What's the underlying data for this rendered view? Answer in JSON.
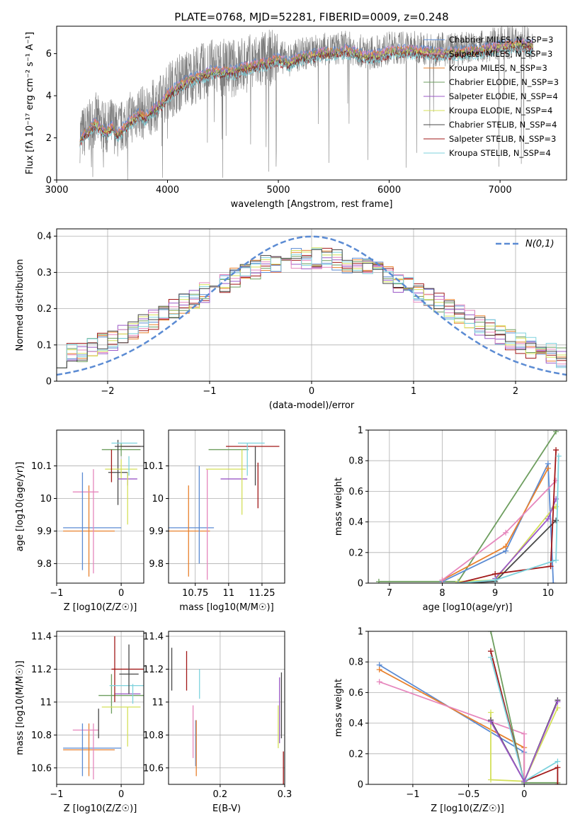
{
  "palette": [
    "#5b8bd3",
    "#e8812e",
    "#6e9e5f",
    "#a11818",
    "#9b59c7",
    "#8a6a5a",
    "#e687bd",
    "#7d7d7d",
    "#d4e05a",
    "#7dd2dd",
    "#474747"
  ],
  "chart_data": [
    {
      "type": "line",
      "id": "spectrum",
      "title": "PLATE=0768, MJD=52281, FIBERID=0009, z=0.248",
      "xlabel": "wavelength [Angstrom, rest frame]",
      "ylabel": "Flux [fλ 10⁻¹⁷ erg cm⁻² s⁻¹ A⁻¹]",
      "xlim": [
        3000,
        7600
      ],
      "ylim": [
        0,
        7.3
      ],
      "xticks": [
        3000,
        4000,
        5000,
        6000,
        7000
      ],
      "yticks": [
        0,
        2,
        4,
        6
      ],
      "grid": false,
      "legend_position": "right",
      "legend": [
        "Chabrier MILES, N_SSP=3",
        "Salpeter MILES, N_SSP=3",
        "Kroupa MILES, N_SSP=3",
        "Chabrier ELODIE, N_SSP=3",
        "Salpeter ELODIE, N_SSP=4",
        "Kroupa ELODIE, N_SSP=4",
        "Chabrier STELIB, N_SSP=4",
        "Salpeter STELIB, N_SSP=3",
        "Kroupa STELIB, N_SSP=4"
      ],
      "legend_colors": [
        "#5b8bd3",
        "#e687bd",
        "#e8812e",
        "#6e9e5f",
        "#9b59c7",
        "#d4e05a",
        "#474747",
        "#a11818",
        "#7dd2dd"
      ],
      "data_color": "#7d7d7d",
      "model_envelope": {
        "x": [
          3210,
          3250,
          3300,
          3350,
          3400,
          3450,
          3500,
          3550,
          3600,
          3650,
          3700,
          3750,
          3800,
          3850,
          3900,
          3950,
          4000,
          4100,
          4200,
          4300,
          4400,
          4500,
          4600,
          4700,
          4800,
          4900,
          5000,
          5100,
          5200,
          5300,
          5400,
          5500,
          5600,
          5700,
          5800,
          5900,
          6000,
          6200,
          6400,
          6600,
          6800,
          7000,
          7200,
          7300
        ],
        "y": [
          2.1,
          2.3,
          2.55,
          2.9,
          2.6,
          2.4,
          2.7,
          2.3,
          2.6,
          2.9,
          3.1,
          3.3,
          3.1,
          3.4,
          3.6,
          3.8,
          4.2,
          4.6,
          4.9,
          5.1,
          5.3,
          5.3,
          5.3,
          5.5,
          5.6,
          5.75,
          5.9,
          5.7,
          6.0,
          6.05,
          6.2,
          6.2,
          6.3,
          6.2,
          6.0,
          6.1,
          6.25,
          6.3,
          6.2,
          6.2,
          6.3,
          6.5,
          6.6,
          6.5
        ]
      }
    },
    {
      "type": "histogram",
      "id": "residuals",
      "xlabel": "(data-model)/error",
      "ylabel": "Normed distribution",
      "xlim": [
        -2.5,
        2.5
      ],
      "ylim": [
        0,
        0.42
      ],
      "xticks": [
        -2,
        -1,
        0,
        1,
        2
      ],
      "yticks": [
        0.0,
        0.1,
        0.2,
        0.3,
        0.4
      ],
      "grid": true,
      "legend": [
        "N(0,1)"
      ],
      "legend_position": "top-right",
      "gaussian_color": "#5b8bd3",
      "bin_width": 0.1,
      "bin_start": -2.5
    },
    {
      "type": "scatter",
      "id": "age_vs_Z",
      "xlabel": "Z [log10(Z/Z☉)]",
      "ylabel": "age  [log10(age/yr)]",
      "xlim": [
        -1.0,
        0.35
      ],
      "ylim": [
        9.74,
        10.21
      ],
      "xticks": [
        -1,
        0
      ],
      "yticks": [
        9.8,
        9.9,
        10.0,
        10.1
      ],
      "grid": true,
      "points": [
        {
          "x": -0.45,
          "y": 9.91,
          "xerr": 0.45,
          "yerr": 0.0,
          "c": 0
        },
        {
          "x": -0.5,
          "y": 9.9,
          "xerr": 0.4,
          "yerr": 0.14,
          "c": 1
        },
        {
          "x": -0.55,
          "y": 10.02,
          "xerr": 0.2,
          "yerr": 0.0,
          "c": 6
        },
        {
          "x": -0.43,
          "y": 9.93,
          "xerr": 0.0,
          "yerr": 0.16,
          "c": 6
        },
        {
          "x": -0.6,
          "y": 9.93,
          "xerr": 0.0,
          "yerr": 0.15,
          "c": 0
        },
        {
          "x": 0.0,
          "y": 10.15,
          "xerr": 0.3,
          "yerr": 0.02,
          "c": 2
        },
        {
          "x": -0.05,
          "y": 10.08,
          "xerr": 0.15,
          "yerr": 0.1,
          "c": 10
        },
        {
          "x": 0.0,
          "y": 10.09,
          "xerr": 0.25,
          "yerr": 0.03,
          "c": 8
        },
        {
          "x": 0.1,
          "y": 10.06,
          "xerr": 0.15,
          "yerr": 0.02,
          "c": 4
        },
        {
          "x": 0.15,
          "y": 10.16,
          "xerr": 0.15,
          "yerr": 0.0,
          "c": 3
        },
        {
          "x": -0.15,
          "y": 10.1,
          "xerr": 0.0,
          "yerr": 0.05,
          "c": 3
        },
        {
          "x": 0.15,
          "y": 10.16,
          "xerr": 0.25,
          "yerr": 0.0,
          "c": 10
        },
        {
          "x": 0.05,
          "y": 10.17,
          "xerr": 0.2,
          "yerr": 0.0,
          "c": 9
        },
        {
          "x": 0.1,
          "y": 10.0,
          "xerr": 0.0,
          "yerr": 0.08,
          "c": 8
        },
        {
          "x": 0.12,
          "y": 10.1,
          "xerr": 0.0,
          "yerr": 0.03,
          "c": 9
        }
      ]
    },
    {
      "type": "scatter",
      "id": "age_vs_mass",
      "xlabel": "mass [log10(M/M☉)]",
      "ylabel": "",
      "xlim": [
        10.55,
        11.42
      ],
      "ylim": [
        9.74,
        10.21
      ],
      "xticks": [
        10.75,
        11.0,
        11.25
      ],
      "yticks": [
        9.8,
        9.9,
        10.0,
        10.1
      ],
      "grid": true,
      "points": [
        {
          "x": 10.72,
          "y": 9.91,
          "xerr": 0.17,
          "yerr": 0.0,
          "c": 0
        },
        {
          "x": 10.7,
          "y": 9.9,
          "xerr": 0.16,
          "yerr": 0.14,
          "c": 1
        },
        {
          "x": 10.84,
          "y": 9.92,
          "xerr": 0.0,
          "yerr": 0.17,
          "c": 6
        },
        {
          "x": 10.78,
          "y": 9.95,
          "xerr": 0.0,
          "yerr": 0.15,
          "c": 0
        },
        {
          "x": 11.0,
          "y": 10.15,
          "xerr": 0.15,
          "yerr": 0.0,
          "c": 2
        },
        {
          "x": 10.98,
          "y": 10.09,
          "xerr": 0.15,
          "yerr": 0.0,
          "c": 8
        },
        {
          "x": 11.04,
          "y": 10.06,
          "xerr": 0.1,
          "yerr": 0.0,
          "c": 4
        },
        {
          "x": 11.18,
          "y": 10.16,
          "xerr": 0.2,
          "yerr": 0.0,
          "c": 3
        },
        {
          "x": 11.2,
          "y": 10.1,
          "xerr": 0.0,
          "yerr": 0.06,
          "c": 10
        },
        {
          "x": 11.22,
          "y": 10.04,
          "xerr": 0.0,
          "yerr": 0.07,
          "c": 3
        },
        {
          "x": 11.17,
          "y": 10.17,
          "xerr": 0.1,
          "yerr": 0.0,
          "c": 9
        },
        {
          "x": 11.1,
          "y": 10.05,
          "xerr": 0.0,
          "yerr": 0.1,
          "c": 8
        },
        {
          "x": 11.14,
          "y": 10.12,
          "xerr": 0.0,
          "yerr": 0.05,
          "c": 9
        }
      ]
    },
    {
      "type": "line",
      "id": "weight_vs_age",
      "xlabel": "age  [log10(age/yr)]",
      "ylabel": "mass weight",
      "xlim": [
        6.6,
        10.35
      ],
      "ylim": [
        0,
        1.0
      ],
      "xticks": [
        7,
        8,
        9,
        10
      ],
      "yticks": [
        0.0,
        0.2,
        0.4,
        0.6,
        0.8,
        1.0
      ],
      "grid": true,
      "series": [
        {
          "c": 2,
          "x": [
            6.8,
            8.3,
            10.15
          ],
          "y": [
            0.01,
            0.01,
            0.99
          ]
        },
        {
          "c": 0,
          "x": [
            8.0,
            9.2,
            10.0,
            10.1
          ],
          "y": [
            0.01,
            0.21,
            0.78,
            0.0
          ]
        },
        {
          "c": 1,
          "x": [
            8.0,
            9.2,
            10.0
          ],
          "y": [
            0.02,
            0.24,
            0.75
          ]
        },
        {
          "c": 6,
          "x": [
            8.0,
            9.2,
            10.15
          ],
          "y": [
            0.02,
            0.33,
            0.67
          ]
        },
        {
          "c": 8,
          "x": [
            8.3,
            9.0,
            10.1,
            10.15
          ],
          "y": [
            0.01,
            0.02,
            0.49,
            0.5
          ]
        },
        {
          "c": 4,
          "x": [
            9.0,
            10.0,
            10.15
          ],
          "y": [
            0.03,
            0.42,
            0.55
          ]
        },
        {
          "c": 10,
          "x": [
            8.3,
            9.0,
            10.15
          ],
          "y": [
            0.0,
            0.01,
            0.41
          ]
        },
        {
          "c": 3,
          "x": [
            8.3,
            9.0,
            10.05,
            10.15
          ],
          "y": [
            0.0,
            0.06,
            0.11,
            0.87
          ]
        },
        {
          "c": 9,
          "x": [
            8.3,
            9.0,
            10.15,
            10.2
          ],
          "y": [
            0.0,
            0.02,
            0.15,
            0.83
          ]
        }
      ]
    },
    {
      "type": "scatter",
      "id": "mass_vs_Z",
      "xlabel": "Z [log10(Z/Z☉)]",
      "ylabel": "mass [log10(M/M☉)]",
      "xlim": [
        -1.0,
        0.35
      ],
      "ylim": [
        10.5,
        11.43
      ],
      "xticks": [
        -1,
        0
      ],
      "yticks": [
        10.6,
        10.8,
        11.0,
        11.2,
        11.4
      ],
      "grid": true,
      "points": [
        {
          "x": -0.45,
          "y": 10.72,
          "xerr": 0.45,
          "yerr": 0.0,
          "c": 0
        },
        {
          "x": -0.5,
          "y": 10.71,
          "xerr": 0.4,
          "yerr": 0.16,
          "c": 1
        },
        {
          "x": -0.55,
          "y": 10.83,
          "xerr": 0.2,
          "yerr": 0.0,
          "c": 6
        },
        {
          "x": -0.43,
          "y": 10.7,
          "xerr": 0.0,
          "yerr": 0.17,
          "c": 6
        },
        {
          "x": -0.6,
          "y": 10.71,
          "xerr": 0.0,
          "yerr": 0.16,
          "c": 0
        },
        {
          "x": -0.35,
          "y": 10.87,
          "xerr": 0.0,
          "yerr": 0.09,
          "c": 10
        },
        {
          "x": -0.15,
          "y": 11.05,
          "xerr": 0.0,
          "yerr": 0.12,
          "c": 2
        },
        {
          "x": 0.0,
          "y": 11.04,
          "xerr": 0.35,
          "yerr": 0.0,
          "c": 2
        },
        {
          "x": 0.0,
          "y": 10.97,
          "xerr": 0.3,
          "yerr": 0.0,
          "c": 8
        },
        {
          "x": 0.1,
          "y": 11.05,
          "xerr": 0.2,
          "yerr": 0.0,
          "c": 4
        },
        {
          "x": -0.1,
          "y": 11.2,
          "xerr": 0.0,
          "yerr": 0.2,
          "c": 3
        },
        {
          "x": 0.15,
          "y": 11.2,
          "xerr": 0.3,
          "yerr": 0.0,
          "c": 3
        },
        {
          "x": 0.12,
          "y": 11.17,
          "xerr": 0.15,
          "yerr": 0.0,
          "c": 10
        },
        {
          "x": 0.12,
          "y": 11.1,
          "xerr": 0.3,
          "yerr": 0.0,
          "c": 9
        },
        {
          "x": 0.12,
          "y": 11.2,
          "xerr": 0.0,
          "yerr": 0.15,
          "c": 10
        },
        {
          "x": 0.1,
          "y": 10.85,
          "xerr": 0.0,
          "yerr": 0.12,
          "c": 8
        },
        {
          "x": 0.18,
          "y": 11.05,
          "xerr": 0.0,
          "yerr": 0.06,
          "c": 9
        }
      ]
    },
    {
      "type": "scatter",
      "id": "mass_vs_ebv",
      "xlabel": "E(B-V)",
      "ylabel": "",
      "xlim": [
        0.12,
        0.3
      ],
      "ylim": [
        10.5,
        11.43
      ],
      "xticks": [
        0.2,
        0.3
      ],
      "yticks": [
        10.6,
        10.8,
        11.0,
        11.2,
        11.4
      ],
      "grid": true,
      "points": [
        {
          "x": 0.125,
          "y": 11.2,
          "xerr": 0.0,
          "yerr": 0.13,
          "c": 10
        },
        {
          "x": 0.148,
          "y": 11.19,
          "xerr": 0.0,
          "yerr": 0.12,
          "c": 3
        },
        {
          "x": 0.158,
          "y": 10.82,
          "xerr": 0.0,
          "yerr": 0.16,
          "c": 6
        },
        {
          "x": 0.162,
          "y": 10.75,
          "xerr": 0.0,
          "yerr": 0.14,
          "c": 0
        },
        {
          "x": 0.163,
          "y": 10.72,
          "xerr": 0.0,
          "yerr": 0.17,
          "c": 1
        },
        {
          "x": 0.168,
          "y": 11.11,
          "xerr": 0.0,
          "yerr": 0.09,
          "c": 9
        },
        {
          "x": 0.29,
          "y": 10.85,
          "xerr": 0.0,
          "yerr": 0.13,
          "c": 8
        },
        {
          "x": 0.292,
          "y": 10.95,
          "xerr": 0.0,
          "yerr": 0.2,
          "c": 4
        },
        {
          "x": 0.295,
          "y": 10.98,
          "xerr": 0.0,
          "yerr": 0.2,
          "c": 10
        },
        {
          "x": 0.298,
          "y": 10.6,
          "xerr": 0.0,
          "yerr": 0.1,
          "c": 3
        }
      ]
    },
    {
      "type": "line",
      "id": "weight_vs_Z",
      "xlabel": "Z [log10(Z/Z☉)]",
      "ylabel": "mass weight",
      "xlim": [
        -1.4,
        0.38
      ],
      "ylim": [
        0,
        1.0
      ],
      "xticks": [
        -1.0,
        -0.5,
        0.0
      ],
      "yticks": [
        0.0,
        0.2,
        0.4,
        0.6,
        0.8,
        1.0
      ],
      "grid": true,
      "series": [
        {
          "c": 0,
          "x": [
            -1.3,
            0.0,
            0.0
          ],
          "y": [
            0.78,
            0.21,
            0.0
          ]
        },
        {
          "c": 1,
          "x": [
            -1.3,
            0.0,
            0.0
          ],
          "y": [
            0.75,
            0.24,
            0.02
          ]
        },
        {
          "c": 6,
          "x": [
            -1.3,
            0.0,
            0.0
          ],
          "y": [
            0.67,
            0.33,
            0.02
          ]
        },
        {
          "c": 2,
          "x": [
            -0.3,
            0.0,
            0.3
          ],
          "y": [
            1.0,
            0.01,
            0.01
          ]
        },
        {
          "c": 3,
          "x": [
            -0.3,
            0.0,
            0.3,
            0.3
          ],
          "y": [
            0.87,
            0.02,
            0.11,
            0.0
          ]
        },
        {
          "c": 9,
          "x": [
            -0.3,
            0.0,
            0.3
          ],
          "y": [
            0.83,
            0.02,
            0.15
          ]
        },
        {
          "c": 8,
          "x": [
            -0.3,
            -0.3,
            0.0,
            0.3
          ],
          "y": [
            0.47,
            0.03,
            0.02,
            0.5
          ]
        },
        {
          "c": 10,
          "x": [
            -0.3,
            0.0,
            0.3
          ],
          "y": [
            0.42,
            0.02,
            0.55
          ]
        },
        {
          "c": 4,
          "x": [
            -0.3,
            0.0,
            0.3
          ],
          "y": [
            0.41,
            0.02,
            0.54
          ]
        }
      ]
    }
  ]
}
